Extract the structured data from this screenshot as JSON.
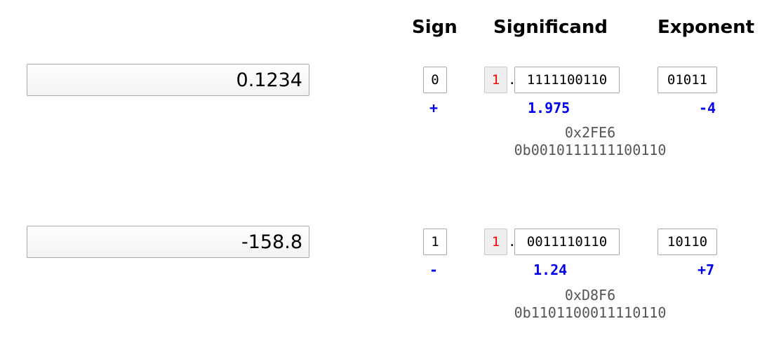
{
  "headers": {
    "sign": "Sign",
    "significand": "Significand",
    "exponent": "Exponent"
  },
  "rows": [
    {
      "decimal": "0.1234",
      "sign_bit": "0",
      "implicit_bit": "1",
      "point": ".",
      "significand_bits": "1111100110",
      "exponent_bits": "01011",
      "sign_decoded": "+",
      "significand_decoded": "1.975",
      "exponent_decoded": "-4",
      "hex": "0x2FE6",
      "binary": "0b0010111111100110"
    },
    {
      "decimal": "-158.8",
      "sign_bit": "1",
      "implicit_bit": "1",
      "point": ".",
      "significand_bits": "0011110110",
      "exponent_bits": "10110",
      "sign_decoded": "-",
      "significand_decoded": "1.24",
      "exponent_decoded": "+7",
      "hex": "0xD8F6",
      "binary": "0b1101100011110110"
    }
  ],
  "colors": {
    "implicit_bit": "#ff0000",
    "decoded_value": "#0000ee",
    "encoding_text": "#555555"
  }
}
